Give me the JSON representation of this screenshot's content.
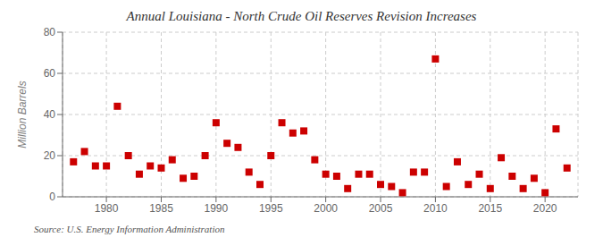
{
  "chart_data": {
    "type": "scatter",
    "title": "Annual Louisiana - North Crude Oil Reserves Revision Increases",
    "y_label": "Million Barrels",
    "annotations": [
      "Source: U.S. Energy Information Administration"
    ],
    "x": [
      1977,
      1978,
      1979,
      1980,
      1981,
      1982,
      1983,
      1984,
      1985,
      1986,
      1987,
      1988,
      1989,
      1990,
      1991,
      1992,
      1993,
      1994,
      1995,
      1996,
      1997,
      1998,
      1999,
      2000,
      2001,
      2002,
      2003,
      2004,
      2005,
      2006,
      2007,
      2008,
      2009,
      2010,
      2011,
      2012,
      2013,
      2014,
      2015,
      2016,
      2017,
      2018,
      2019,
      2020,
      2021,
      2022
    ],
    "values": [
      17,
      22,
      15,
      15,
      44,
      20,
      11,
      15,
      14,
      18,
      9,
      10,
      20,
      36,
      26,
      24,
      12,
      6,
      20,
      36,
      31,
      32,
      18,
      11,
      10,
      4,
      11,
      11,
      6,
      5,
      2,
      12,
      12,
      67,
      5,
      17,
      6,
      11,
      4,
      19,
      10,
      4,
      9,
      2,
      33,
      14
    ],
    "color": "#cc0000",
    "marker": "square",
    "xlim": [
      1976,
      2023
    ],
    "ylim": [
      0,
      80
    ],
    "xticks": [
      1980,
      1985,
      1990,
      1995,
      2000,
      2005,
      2010,
      2015,
      2020
    ],
    "yticks": [
      0,
      20,
      40,
      60,
      80
    ],
    "grid": true
  }
}
